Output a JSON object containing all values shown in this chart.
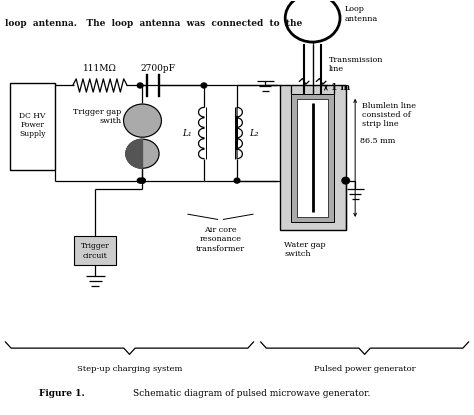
{
  "fig_width": 4.74,
  "fig_height": 4.15,
  "dpi": 100,
  "bg_color": "#ffffff",
  "line_color": "#000000",
  "labels": {
    "resistor": "111MΩ",
    "capacitor": "2700pF",
    "trigger_gap": "Trigger gap\nswith",
    "dc_hv": "DC HV\nPower\nSupply",
    "trigger_circuit": "Trigger\ncircuit",
    "L1": "L₁",
    "L2": "L₂",
    "transformer": "Air core\nresonance\ntransformer",
    "water_gap": "Water gap\nswitch",
    "blumlein": "Blumlein line\nconsisted of\nstrip line",
    "transmission": "Transmission\nline",
    "loop_antenna": "Loop\nantenna",
    "one_m": "1 m",
    "mm": "86.5 mm",
    "step_up": "Step-up charging system",
    "pulsed": "Pulsed power generator",
    "fig_label": "Figure 1.",
    "fig_caption": "Schematic diagram of pulsed microwave generator.",
    "top_text": "loop  antenna.   The  loop  antenna  was  connected  to  the"
  }
}
